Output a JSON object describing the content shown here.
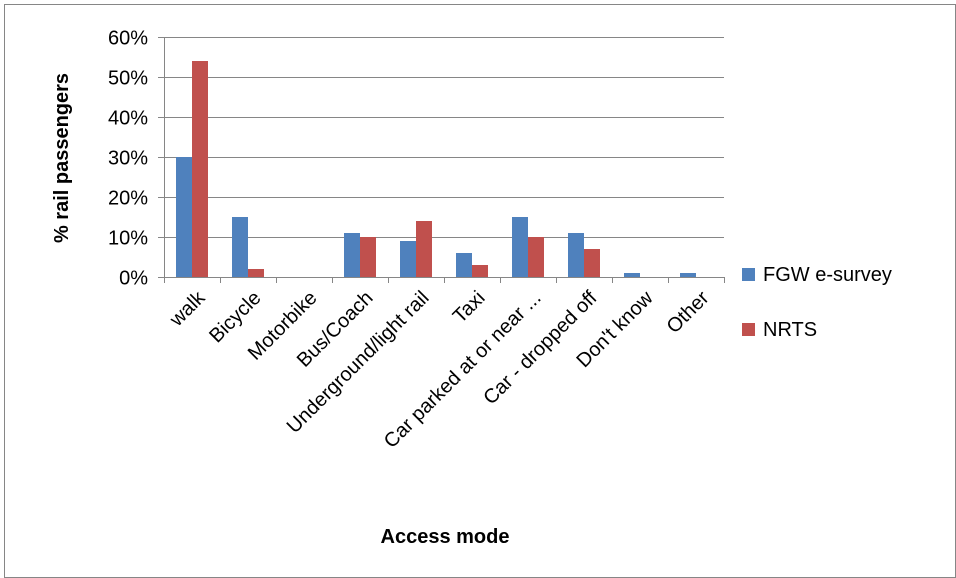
{
  "chart_data": {
    "type": "bar",
    "title": "",
    "xlabel": "Access mode",
    "ylabel": "% rail passengers",
    "categories": [
      "walk",
      "Bicycle",
      "Motorbike",
      "Bus/Coach",
      "Underground/light rail",
      "Taxi",
      "Car parked at or near ...",
      "Car - dropped off",
      "Don't know",
      "Other"
    ],
    "series": [
      {
        "name": "FGW e-survey",
        "color": "#4F81BD",
        "values": [
          30,
          15,
          0,
          11,
          9,
          6,
          15,
          11,
          1,
          1
        ]
      },
      {
        "name": "NRTS",
        "color": "#C0504D",
        "values": [
          54,
          2,
          0,
          10,
          14,
          3,
          10,
          7,
          0,
          0
        ]
      }
    ],
    "ylim": [
      0,
      60
    ],
    "yticks": [
      0,
      10,
      20,
      30,
      40,
      50,
      60
    ],
    "ytick_labels": [
      "0%",
      "10%",
      "20%",
      "30%",
      "40%",
      "50%",
      "60%"
    ],
    "grid": true,
    "legend_position": "right"
  }
}
